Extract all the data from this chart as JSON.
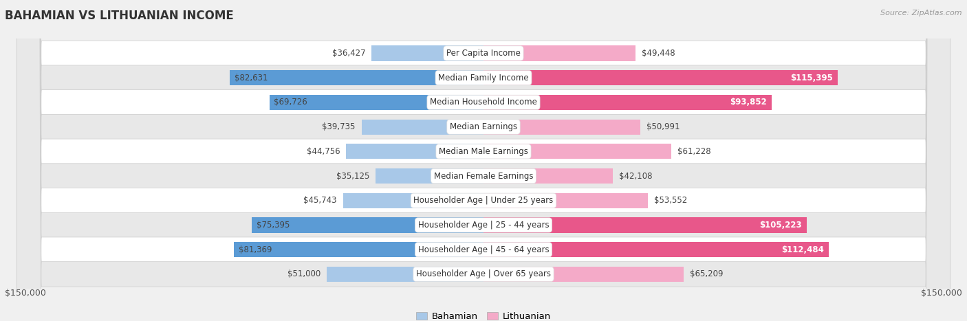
{
  "title": "BAHAMIAN VS LITHUANIAN INCOME",
  "source": "Source: ZipAtlas.com",
  "categories": [
    "Per Capita Income",
    "Median Family Income",
    "Median Household Income",
    "Median Earnings",
    "Median Male Earnings",
    "Median Female Earnings",
    "Householder Age | Under 25 years",
    "Householder Age | 25 - 44 years",
    "Householder Age | 45 - 64 years",
    "Householder Age | Over 65 years"
  ],
  "bahamian": [
    36427,
    82631,
    69726,
    39735,
    44756,
    35125,
    45743,
    75395,
    81369,
    51000
  ],
  "lithuanian": [
    49448,
    115395,
    93852,
    50991,
    61228,
    42108,
    53552,
    105223,
    112484,
    65209
  ],
  "bahamian_labels": [
    "$36,427",
    "$82,631",
    "$69,726",
    "$39,735",
    "$44,756",
    "$35,125",
    "$45,743",
    "$75,395",
    "$81,369",
    "$51,000"
  ],
  "lithuanian_labels": [
    "$49,448",
    "$115,395",
    "$93,852",
    "$50,991",
    "$61,228",
    "$42,108",
    "$53,552",
    "$105,223",
    "$112,484",
    "$65,209"
  ],
  "max_val": 150000,
  "bahamian_color_light": "#a8c8e8",
  "bahamian_color_dark": "#5b9bd5",
  "lithuanian_color_light": "#f4aac8",
  "lithuanian_color_dark": "#e8578a",
  "bg_color": "#f0f0f0",
  "row_bg_light": "#ffffff",
  "row_bg_dark": "#e8e8e8",
  "label_fontsize": 8.5,
  "title_fontsize": 12,
  "axis_label": "$150,000",
  "bah_dark_threshold": 65000,
  "lith_dark_threshold": 88000
}
